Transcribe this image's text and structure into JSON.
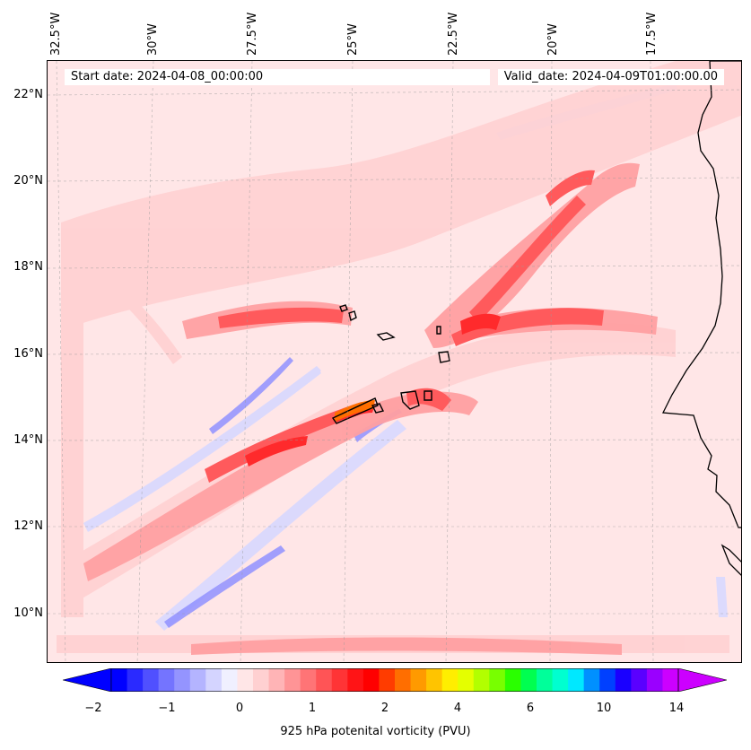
{
  "map": {
    "start_date_label": "Start date: 2024-04-08_00:00:00",
    "valid_date_label": "Valid_date: 2024-04-09T01:00:00.00",
    "lat_labels": [
      "22°N",
      "20°N",
      "18°N",
      "16°N",
      "14°N",
      "12°N",
      "10°N"
    ],
    "lon_labels": [
      "32.5°W",
      "30°W",
      "27.5°W",
      "25°W",
      "22.5°W",
      "20°W",
      "17.5°W"
    ],
    "background_color": "#ffe6e7",
    "coastline_color": "#000000"
  },
  "colorbar": {
    "title": "925 hPa potenital vorticity (PVU)",
    "tick_labels": [
      "−2",
      "−1",
      "0",
      "1",
      "2",
      "4",
      "6",
      "10",
      "14"
    ],
    "colors": [
      "#0000ff",
      "#2a2aff",
      "#5050ff",
      "#7474ff",
      "#9494ff",
      "#b4b4ff",
      "#d4d4ff",
      "#f0f0ff",
      "#ffe6e7",
      "#ffd0d1",
      "#ffb4b6",
      "#ff9496",
      "#ff7476",
      "#ff5456",
      "#ff3436",
      "#ff1416",
      "#ff0000",
      "#ff3c00",
      "#ff6e00",
      "#ff9a00",
      "#ffc400",
      "#ffee00",
      "#e4ff00",
      "#b2ff00",
      "#78ff00",
      "#2aff00",
      "#00ff50",
      "#00ff9a",
      "#00ffd0",
      "#00e8ff",
      "#0090ff",
      "#0040ff",
      "#1a00ff",
      "#5a00ff",
      "#9a00ff",
      "#cc00ff"
    ],
    "under_color": "#0000ff",
    "over_color": "#cc00ff"
  }
}
